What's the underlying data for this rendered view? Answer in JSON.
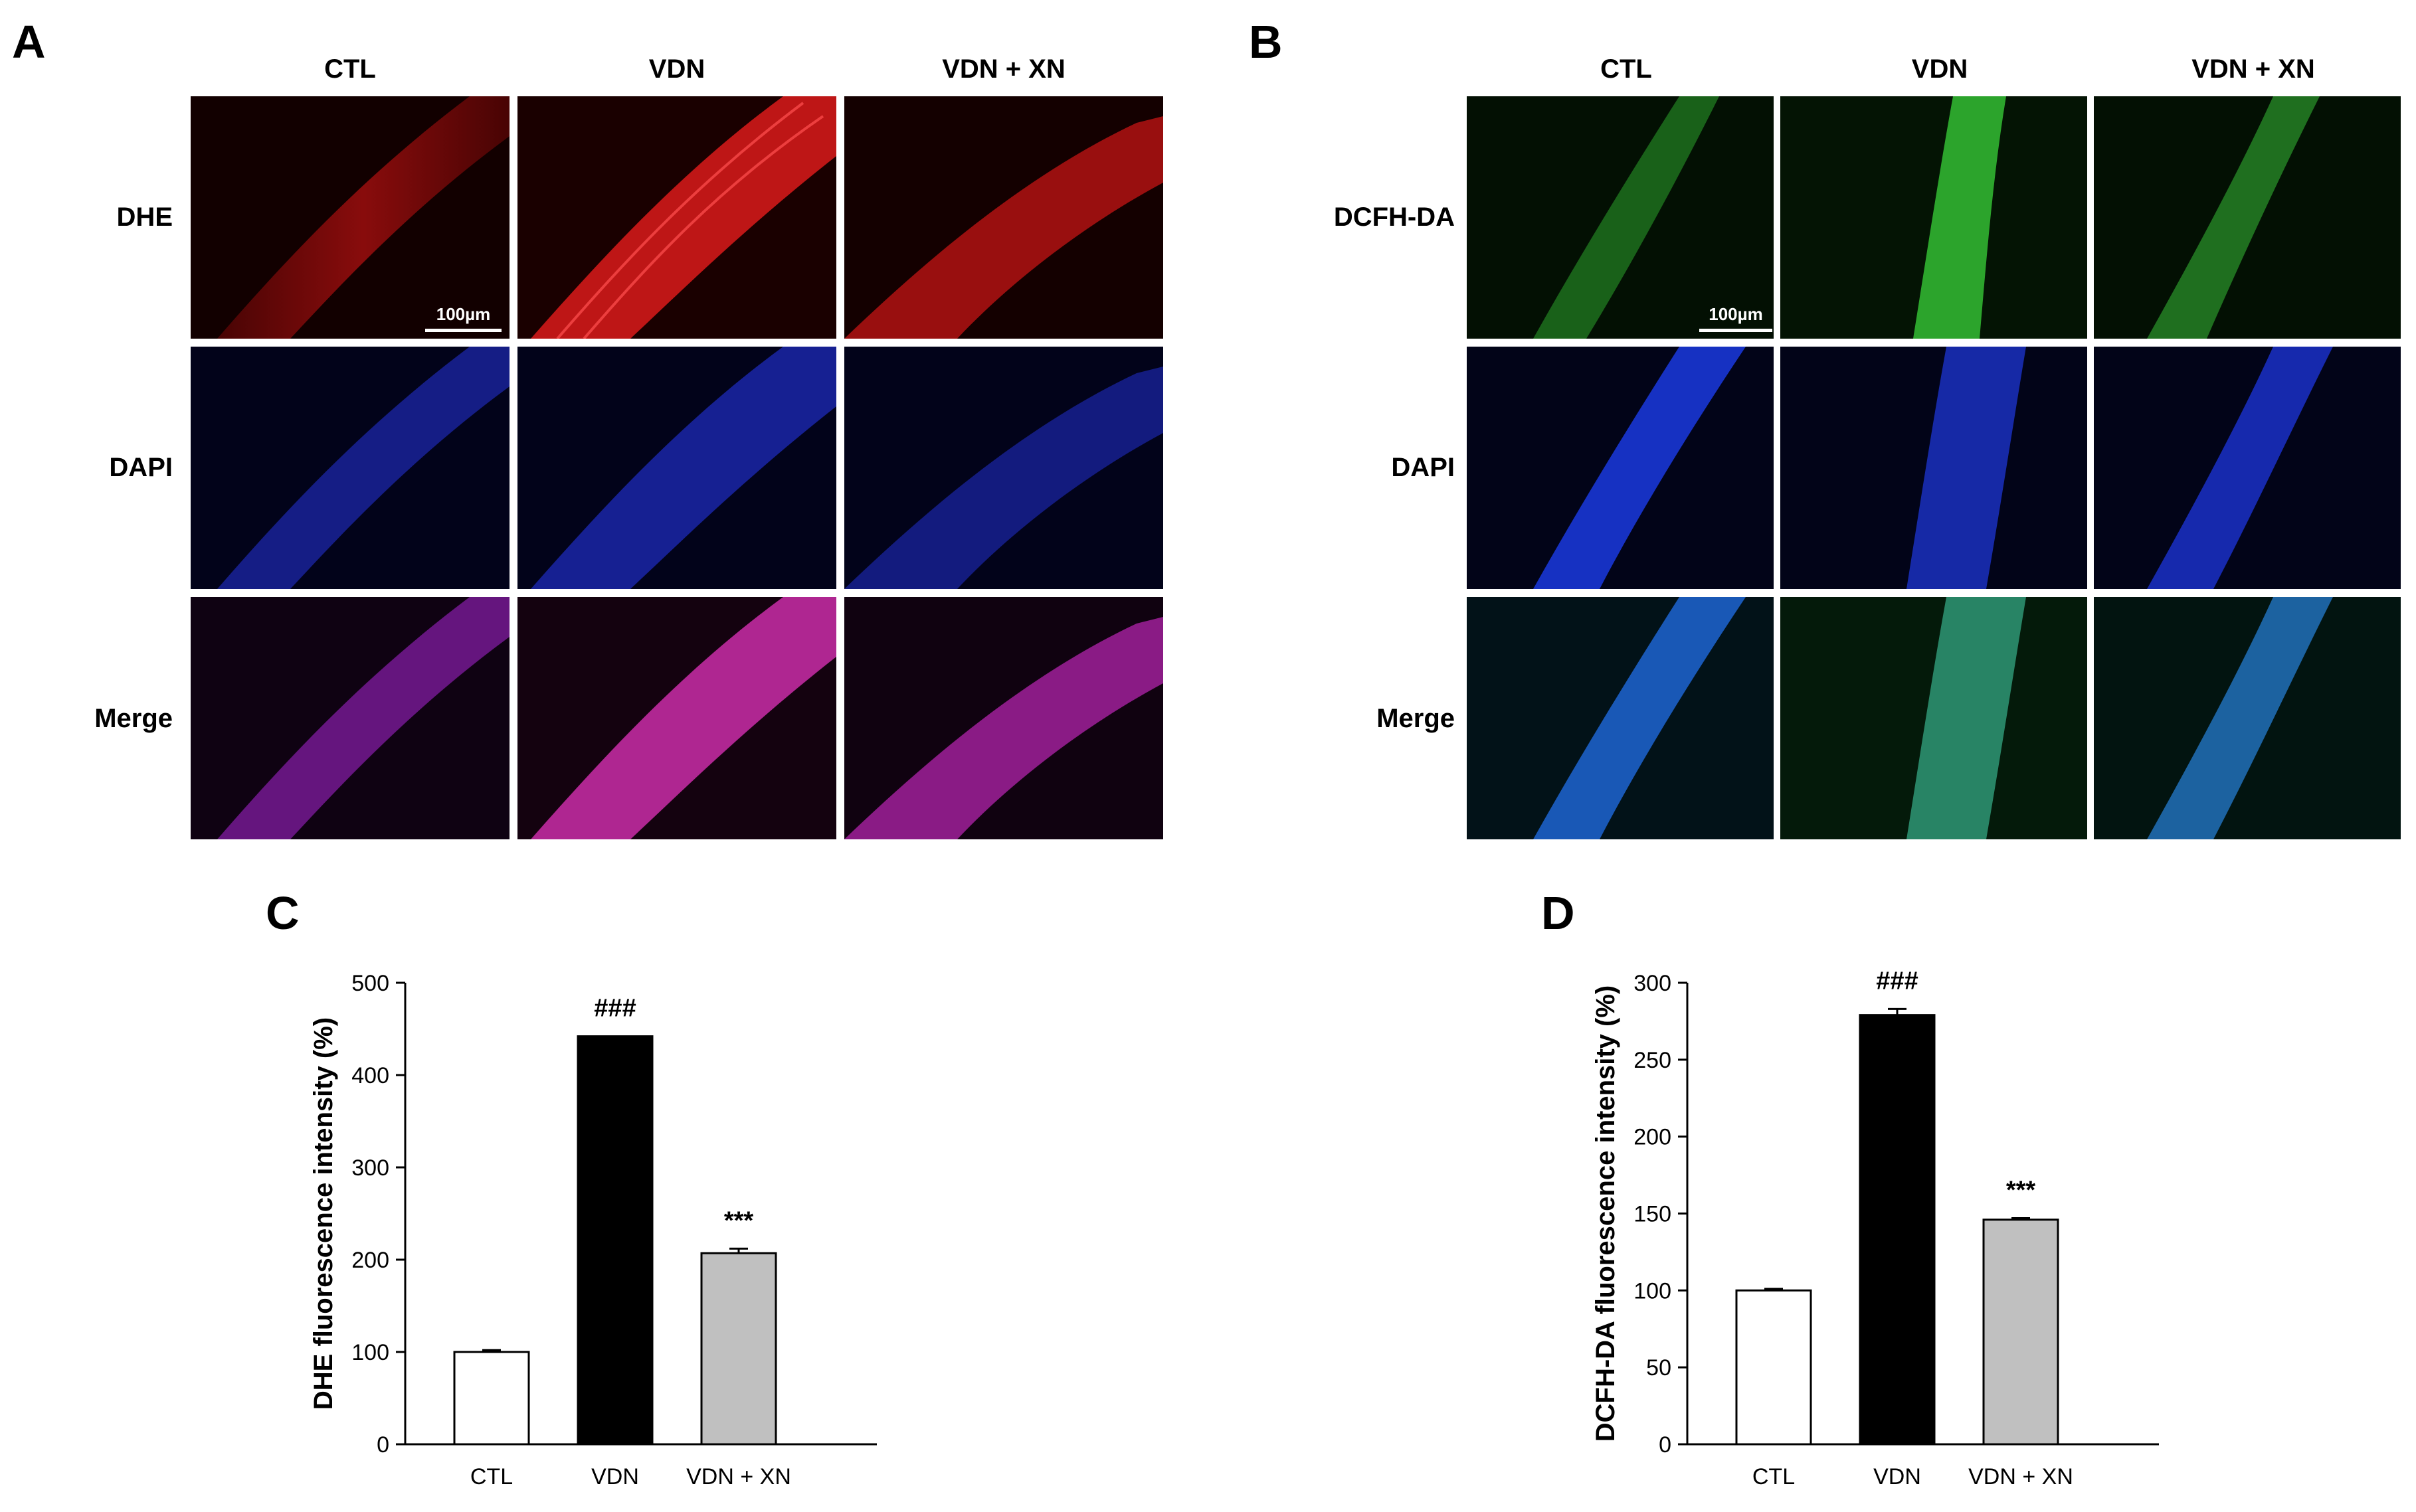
{
  "panels": {
    "A": {
      "letter": "A",
      "columns": [
        "CTL",
        "VDN",
        "VDN + XN"
      ],
      "rows": [
        "DHE",
        "DAPI",
        "Merge"
      ],
      "scale_bar": "100µm"
    },
    "B": {
      "letter": "B",
      "columns": [
        "CTL",
        "VDN",
        "VDN + XN"
      ],
      "rows": [
        "DCFH-DA",
        "DAPI",
        "Merge"
      ],
      "scale_bar": "100µm"
    },
    "C": {
      "letter": "C"
    },
    "D": {
      "letter": "D"
    }
  },
  "chart_data": [
    {
      "type": "bar",
      "categories": [
        "CTL",
        "VDN",
        "VDN + XN"
      ],
      "values": [
        100,
        442,
        207
      ],
      "errors": [
        2,
        0,
        5
      ],
      "annotations": [
        "",
        "###",
        "***"
      ],
      "bar_colors": [
        "#ffffff",
        "#000000",
        "#c0c0c0"
      ],
      "title": "",
      "xlabel": "",
      "ylabel": "DHE fluorescence intensity (%)",
      "ylim": [
        0,
        500
      ],
      "yticks": [
        0,
        100,
        200,
        300,
        400,
        500
      ]
    },
    {
      "type": "bar",
      "categories": [
        "CTL",
        "VDN",
        "VDN + XN"
      ],
      "values": [
        100,
        279,
        146
      ],
      "errors": [
        1,
        4,
        1
      ],
      "annotations": [
        "",
        "###",
        "***"
      ],
      "bar_colors": [
        "#ffffff",
        "#000000",
        "#c0c0c0"
      ],
      "title": "",
      "xlabel": "",
      "ylabel": "DCFH-DA fluorescence intensity (%)",
      "ylim": [
        0,
        300
      ],
      "yticks": [
        0,
        50,
        100,
        150,
        200,
        250,
        300
      ]
    }
  ]
}
